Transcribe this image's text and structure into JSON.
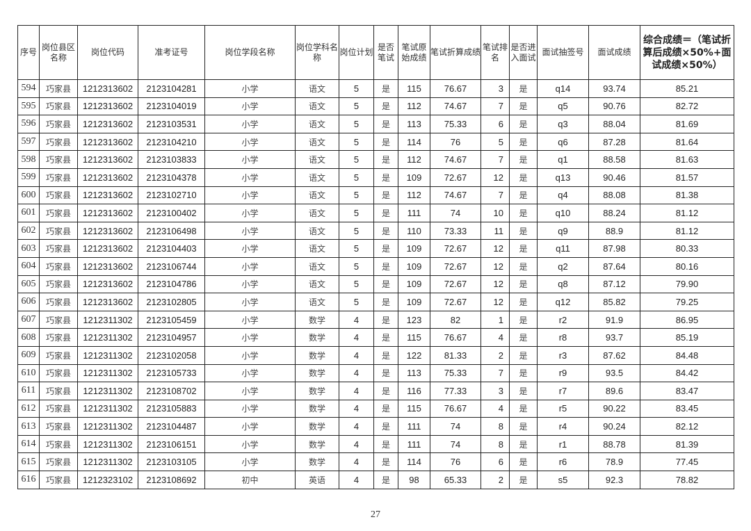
{
  "headers": [
    "序号",
    "岗位县区名称",
    "岗位代码",
    "准考证号",
    "岗位学段名称",
    "岗位学科名称",
    "岗位计划",
    "是否笔试",
    "笔试原始成绩",
    "笔试折算成绩",
    "笔试排名",
    "是否进入面试",
    "面试抽签号",
    "面试成绩",
    "综合成绩＝（笔试折算后成绩×50%+面试成绩×50%）"
  ],
  "rows": [
    [
      "594",
      "巧家县",
      "1212313602",
      "2123104281",
      "小学",
      "语文",
      "5",
      "是",
      "115",
      "76.67",
      "3",
      "是",
      "q14",
      "93.74",
      "85.21"
    ],
    [
      "595",
      "巧家县",
      "1212313602",
      "2123104019",
      "小学",
      "语文",
      "5",
      "是",
      "112",
      "74.67",
      "7",
      "是",
      "q5",
      "90.76",
      "82.72"
    ],
    [
      "596",
      "巧家县",
      "1212313602",
      "2123103531",
      "小学",
      "语文",
      "5",
      "是",
      "113",
      "75.33",
      "6",
      "是",
      "q3",
      "88.04",
      "81.69"
    ],
    [
      "597",
      "巧家县",
      "1212313602",
      "2123104210",
      "小学",
      "语文",
      "5",
      "是",
      "114",
      "76",
      "5",
      "是",
      "q6",
      "87.28",
      "81.64"
    ],
    [
      "598",
      "巧家县",
      "1212313602",
      "2123103833",
      "小学",
      "语文",
      "5",
      "是",
      "112",
      "74.67",
      "7",
      "是",
      "q1",
      "88.58",
      "81.63"
    ],
    [
      "599",
      "巧家县",
      "1212313602",
      "2123104378",
      "小学",
      "语文",
      "5",
      "是",
      "109",
      "72.67",
      "12",
      "是",
      "q13",
      "90.46",
      "81.57"
    ],
    [
      "600",
      "巧家县",
      "1212313602",
      "2123102710",
      "小学",
      "语文",
      "5",
      "是",
      "112",
      "74.67",
      "7",
      "是",
      "q4",
      "88.08",
      "81.38"
    ],
    [
      "601",
      "巧家县",
      "1212313602",
      "2123100402",
      "小学",
      "语文",
      "5",
      "是",
      "111",
      "74",
      "10",
      "是",
      "q10",
      "88.24",
      "81.12"
    ],
    [
      "602",
      "巧家县",
      "1212313602",
      "2123106498",
      "小学",
      "语文",
      "5",
      "是",
      "110",
      "73.33",
      "11",
      "是",
      "q9",
      "88.9",
      "81.12"
    ],
    [
      "603",
      "巧家县",
      "1212313602",
      "2123104403",
      "小学",
      "语文",
      "5",
      "是",
      "109",
      "72.67",
      "12",
      "是",
      "q11",
      "87.98",
      "80.33"
    ],
    [
      "604",
      "巧家县",
      "1212313602",
      "2123106744",
      "小学",
      "语文",
      "5",
      "是",
      "109",
      "72.67",
      "12",
      "是",
      "q2",
      "87.64",
      "80.16"
    ],
    [
      "605",
      "巧家县",
      "1212313602",
      "2123104786",
      "小学",
      "语文",
      "5",
      "是",
      "109",
      "72.67",
      "12",
      "是",
      "q8",
      "87.12",
      "79.90"
    ],
    [
      "606",
      "巧家县",
      "1212313602",
      "2123102805",
      "小学",
      "语文",
      "5",
      "是",
      "109",
      "72.67",
      "12",
      "是",
      "q12",
      "85.82",
      "79.25"
    ],
    [
      "607",
      "巧家县",
      "1212311302",
      "2123105459",
      "小学",
      "数学",
      "4",
      "是",
      "123",
      "82",
      "1",
      "是",
      "r2",
      "91.9",
      "86.95"
    ],
    [
      "608",
      "巧家县",
      "1212311302",
      "2123104957",
      "小学",
      "数学",
      "4",
      "是",
      "115",
      "76.67",
      "4",
      "是",
      "r8",
      "93.7",
      "85.19"
    ],
    [
      "609",
      "巧家县",
      "1212311302",
      "2123102058",
      "小学",
      "数学",
      "4",
      "是",
      "122",
      "81.33",
      "2",
      "是",
      "r3",
      "87.62",
      "84.48"
    ],
    [
      "610",
      "巧家县",
      "1212311302",
      "2123105733",
      "小学",
      "数学",
      "4",
      "是",
      "113",
      "75.33",
      "7",
      "是",
      "r9",
      "93.5",
      "84.42"
    ],
    [
      "611",
      "巧家县",
      "1212311302",
      "2123108702",
      "小学",
      "数学",
      "4",
      "是",
      "116",
      "77.33",
      "3",
      "是",
      "r7",
      "89.6",
      "83.47"
    ],
    [
      "612",
      "巧家县",
      "1212311302",
      "2123105883",
      "小学",
      "数学",
      "4",
      "是",
      "115",
      "76.67",
      "4",
      "是",
      "r5",
      "90.22",
      "83.45"
    ],
    [
      "613",
      "巧家县",
      "1212311302",
      "2123104487",
      "小学",
      "数学",
      "4",
      "是",
      "111",
      "74",
      "8",
      "是",
      "r4",
      "90.24",
      "82.12"
    ],
    [
      "614",
      "巧家县",
      "1212311302",
      "2123106151",
      "小学",
      "数学",
      "4",
      "是",
      "111",
      "74",
      "8",
      "是",
      "r1",
      "88.78",
      "81.39"
    ],
    [
      "615",
      "巧家县",
      "1212311302",
      "2123103105",
      "小学",
      "数学",
      "4",
      "是",
      "114",
      "76",
      "6",
      "是",
      "r6",
      "78.9",
      "77.45"
    ],
    [
      "616",
      "巧家县",
      "1212323102",
      "2123108692",
      "初中",
      "英语",
      "4",
      "是",
      "98",
      "65.33",
      "2",
      "是",
      "s5",
      "92.3",
      "78.82"
    ]
  ],
  "page_number": "27"
}
